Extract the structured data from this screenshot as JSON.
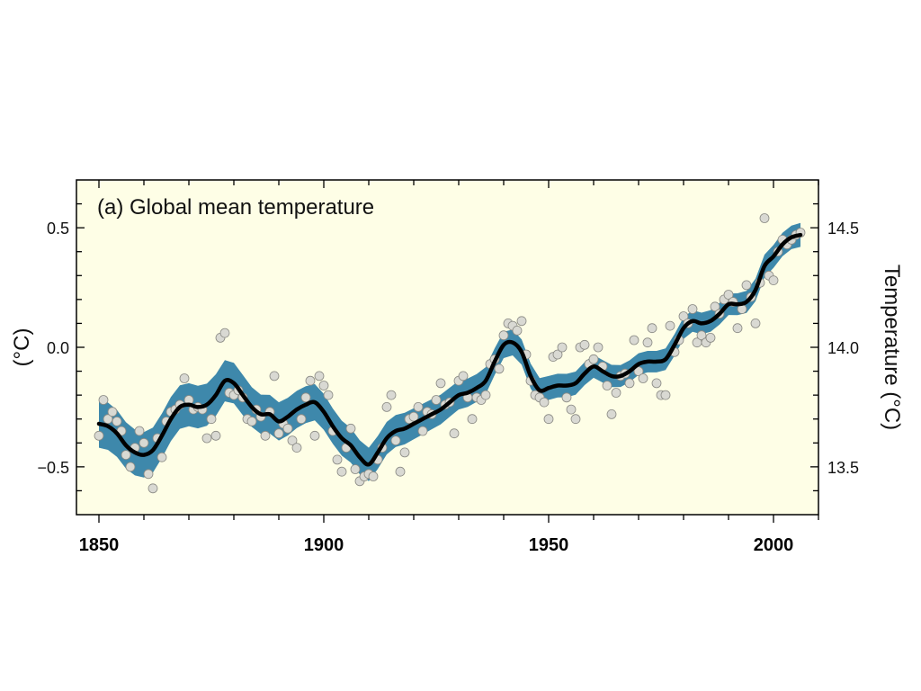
{
  "chart_data": {
    "type": "line",
    "title": "(a) Global mean temperature",
    "ylabel_left": "(°C)",
    "ylabel_right": "Temperature (°C)",
    "xlim": [
      1845,
      2010
    ],
    "ylim": [
      -0.7,
      0.7
    ],
    "x_ticks": [
      1850,
      1900,
      1950,
      2000
    ],
    "x_tick_labels": [
      "1850",
      "1900",
      "1950",
      "2000"
    ],
    "y_left_ticks": [
      -0.5,
      0.0,
      0.5
    ],
    "y_left_tick_labels": [
      "−0.5",
      "0.0",
      "0.5"
    ],
    "y_right_ticks": [
      -0.5,
      0.0,
      0.5
    ],
    "y_right_tick_labels": [
      "13.5",
      "14.0",
      "14.5"
    ],
    "colors": {
      "background": "#fefee6",
      "band": "#3e88ab",
      "line": "#000000",
      "points": "#d9d9d3",
      "point_stroke": "#8a8a84"
    },
    "series": [
      {
        "kind": "smoothed",
        "x": [
          1850,
          1852,
          1854,
          1856,
          1858,
          1860,
          1862,
          1864,
          1866,
          1868,
          1870,
          1872,
          1874,
          1876,
          1878,
          1880,
          1882,
          1884,
          1886,
          1888,
          1890,
          1892,
          1894,
          1896,
          1898,
          1900,
          1902,
          1904,
          1906,
          1908,
          1910,
          1912,
          1914,
          1916,
          1918,
          1920,
          1922,
          1924,
          1926,
          1928,
          1930,
          1932,
          1934,
          1936,
          1938,
          1940,
          1942,
          1944,
          1946,
          1948,
          1950,
          1952,
          1954,
          1956,
          1958,
          1960,
          1962,
          1964,
          1966,
          1968,
          1970,
          1972,
          1974,
          1976,
          1978,
          1980,
          1982,
          1984,
          1986,
          1988,
          1990,
          1992,
          1994,
          1996,
          1998,
          2000,
          2002,
          2004,
          2006
        ],
        "y": [
          -0.32,
          -0.33,
          -0.36,
          -0.41,
          -0.44,
          -0.45,
          -0.43,
          -0.37,
          -0.3,
          -0.25,
          -0.24,
          -0.25,
          -0.24,
          -0.2,
          -0.14,
          -0.15,
          -0.2,
          -0.25,
          -0.28,
          -0.28,
          -0.31,
          -0.29,
          -0.26,
          -0.24,
          -0.23,
          -0.27,
          -0.33,
          -0.38,
          -0.41,
          -0.46,
          -0.49,
          -0.44,
          -0.38,
          -0.35,
          -0.34,
          -0.32,
          -0.3,
          -0.28,
          -0.26,
          -0.23,
          -0.2,
          -0.19,
          -0.17,
          -0.14,
          -0.06,
          0.01,
          0.02,
          -0.02,
          -0.12,
          -0.18,
          -0.17,
          -0.16,
          -0.16,
          -0.15,
          -0.11,
          -0.08,
          -0.1,
          -0.12,
          -0.12,
          -0.1,
          -0.07,
          -0.06,
          -0.06,
          -0.05,
          0.01,
          0.08,
          0.11,
          0.1,
          0.11,
          0.14,
          0.18,
          0.18,
          0.19,
          0.24,
          0.34,
          0.38,
          0.43,
          0.46,
          0.47
        ]
      },
      {
        "kind": "band_halfwidth",
        "x": [
          1850,
          1870,
          1890,
          1910,
          1930,
          1950,
          1970,
          1990,
          2006
        ],
        "y": [
          0.1,
          0.09,
          0.08,
          0.07,
          0.06,
          0.05,
          0.045,
          0.045,
          0.05
        ]
      },
      {
        "kind": "annual",
        "x": [
          1850,
          1851,
          1852,
          1853,
          1854,
          1855,
          1856,
          1857,
          1858,
          1859,
          1860,
          1861,
          1862,
          1863,
          1864,
          1865,
          1866,
          1867,
          1868,
          1869,
          1870,
          1871,
          1872,
          1873,
          1874,
          1875,
          1876,
          1877,
          1878,
          1879,
          1880,
          1881,
          1882,
          1883,
          1884,
          1885,
          1886,
          1887,
          1888,
          1889,
          1890,
          1891,
          1892,
          1893,
          1894,
          1895,
          1896,
          1897,
          1898,
          1899,
          1900,
          1901,
          1902,
          1903,
          1904,
          1905,
          1906,
          1907,
          1908,
          1909,
          1910,
          1911,
          1912,
          1913,
          1914,
          1915,
          1916,
          1917,
          1918,
          1919,
          1920,
          1921,
          1922,
          1923,
          1924,
          1925,
          1926,
          1927,
          1928,
          1929,
          1930,
          1931,
          1932,
          1933,
          1934,
          1935,
          1936,
          1937,
          1938,
          1939,
          1940,
          1941,
          1942,
          1943,
          1944,
          1945,
          1946,
          1947,
          1948,
          1949,
          1950,
          1951,
          1952,
          1953,
          1954,
          1955,
          1956,
          1957,
          1958,
          1959,
          1960,
          1961,
          1962,
          1963,
          1964,
          1965,
          1966,
          1967,
          1968,
          1969,
          1970,
          1971,
          1972,
          1973,
          1974,
          1975,
          1976,
          1977,
          1978,
          1979,
          1980,
          1981,
          1982,
          1983,
          1984,
          1985,
          1986,
          1987,
          1988,
          1989,
          1990,
          1991,
          1992,
          1993,
          1994,
          1995,
          1996,
          1997,
          1998,
          1999,
          2000,
          2001,
          2002,
          2003,
          2004,
          2005,
          2006
        ],
        "y": [
          -0.37,
          -0.22,
          -0.3,
          -0.27,
          -0.31,
          -0.35,
          -0.45,
          -0.5,
          -0.42,
          -0.35,
          -0.4,
          -0.53,
          -0.59,
          -0.38,
          -0.46,
          -0.31,
          -0.27,
          -0.26,
          -0.24,
          -0.13,
          -0.22,
          -0.26,
          -0.25,
          -0.26,
          -0.38,
          -0.3,
          -0.37,
          0.04,
          0.06,
          -0.19,
          -0.2,
          -0.18,
          -0.21,
          -0.3,
          -0.31,
          -0.26,
          -0.29,
          -0.37,
          -0.27,
          -0.12,
          -0.36,
          -0.32,
          -0.34,
          -0.39,
          -0.42,
          -0.3,
          -0.21,
          -0.14,
          -0.37,
          -0.12,
          -0.16,
          -0.2,
          -0.35,
          -0.47,
          -0.52,
          -0.42,
          -0.34,
          -0.51,
          -0.56,
          -0.54,
          -0.53,
          -0.54,
          -0.47,
          -0.42,
          -0.25,
          -0.2,
          -0.39,
          -0.52,
          -0.44,
          -0.3,
          -0.29,
          -0.25,
          -0.35,
          -0.27,
          -0.28,
          -0.22,
          -0.15,
          -0.24,
          -0.23,
          -0.36,
          -0.14,
          -0.12,
          -0.21,
          -0.3,
          -0.21,
          -0.22,
          -0.2,
          -0.07,
          -0.05,
          -0.09,
          0.05,
          0.1,
          0.09,
          0.07,
          0.11,
          -0.03,
          -0.14,
          -0.2,
          -0.21,
          -0.23,
          -0.3,
          -0.04,
          -0.03,
          0.0,
          -0.21,
          -0.26,
          -0.3,
          0.0,
          0.01,
          -0.07,
          -0.05,
          0.0,
          -0.08,
          -0.16,
          -0.28,
          -0.19,
          -0.12,
          -0.11,
          -0.15,
          0.03,
          -0.1,
          -0.13,
          0.02,
          0.08,
          -0.15,
          -0.2,
          -0.2,
          0.09,
          -0.02,
          0.03,
          0.13,
          0.1,
          0.16,
          0.02,
          0.05,
          0.02,
          0.04,
          0.17,
          0.14,
          0.2,
          0.22,
          0.19,
          0.08,
          0.16,
          0.26,
          0.21,
          0.1,
          0.27,
          0.54,
          0.3,
          0.28,
          0.4,
          0.45,
          0.43,
          0.45,
          0.47,
          0.48
        ]
      }
    ]
  }
}
